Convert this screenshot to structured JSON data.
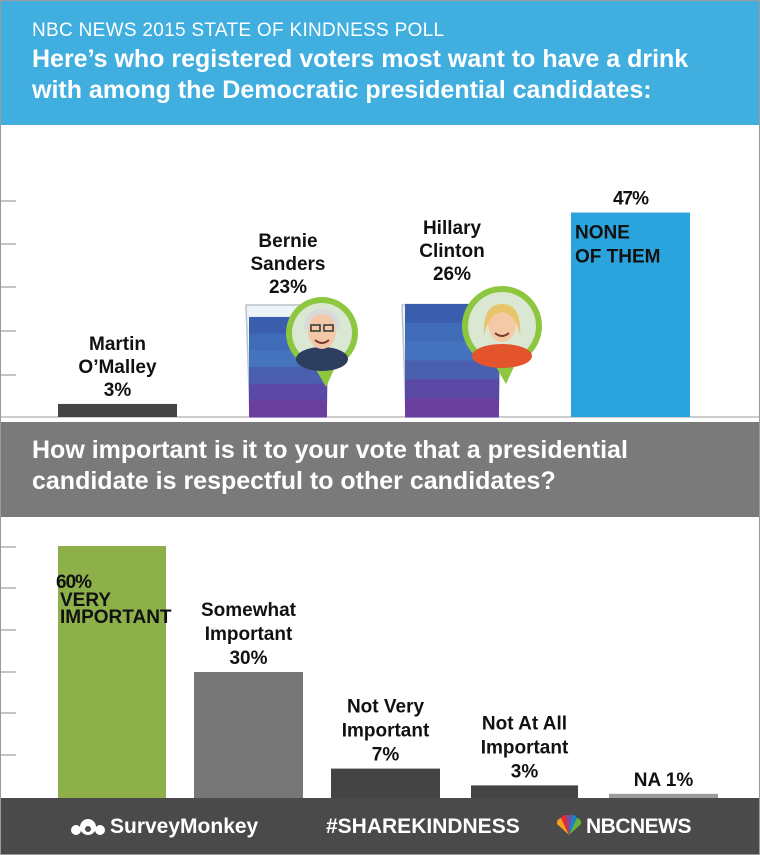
{
  "header": {
    "kicker": "NBC NEWS 2015 STATE OF KINDNESS POLL",
    "headline": "Here’s who registered voters most want to have a drink with among the Democratic presidential candidates:"
  },
  "question2": "How important is it to your vote that a presidential candidate is respectful to other candidates?",
  "footer": {
    "surveymonkey": "SurveyMonkey",
    "hashtag": "#SHAREKINDNESS",
    "nbc": "NBCNEWS"
  },
  "colors": {
    "header": "#41aee0",
    "band": "#7a7a7a",
    "footer": "#4a4a4a",
    "none_bar": "#2aa4dd",
    "very_bar": "#8db04b",
    "gray_bar": "#777777",
    "dark_bar": "#444444",
    "glass_blue": "#3a5dae",
    "badge_green": "#8dc63f"
  },
  "chart_data": [
    {
      "type": "bar",
      "title": "Here’s who registered voters most want to have a drink with among the Democratic presidential candidates:",
      "categories": [
        "Martin O’Malley",
        "Bernie Sanders",
        "Hillary Clinton",
        "NONE OF THEM"
      ],
      "values": [
        3,
        23,
        26,
        47
      ],
      "value_labels": [
        "3%",
        "23%",
        "26%",
        "47%"
      ],
      "ylim": [
        0,
        50
      ],
      "label_lines": [
        [
          "Martin",
          "O’Malley",
          "3%"
        ],
        [
          "Bernie",
          "Sanders",
          "23%"
        ],
        [
          "Hillary",
          "Clinton",
          "26%"
        ],
        [
          "47%",
          "NONE",
          "OF THEM"
        ]
      ]
    },
    {
      "type": "bar",
      "title": "How important is it to your vote that a presidential candidate is respectful to other candidates?",
      "categories": [
        "VERY IMPORTANT",
        "Somewhat Important",
        "Not Very Important",
        "Not At All Important",
        "NA"
      ],
      "values": [
        60,
        30,
        7,
        3,
        1
      ],
      "value_labels": [
        "60%",
        "30%",
        "7%",
        "3%",
        "1%"
      ],
      "ylim": [
        0,
        60
      ],
      "label_lines": [
        [
          "60%",
          "VERY",
          "IMPORTANT"
        ],
        [
          "Somewhat",
          "Important",
          "30%"
        ],
        [
          "Not Very",
          "Important",
          "7%"
        ],
        [
          "Not At All",
          "Important",
          "3%"
        ],
        [
          "NA 1%"
        ]
      ]
    }
  ]
}
